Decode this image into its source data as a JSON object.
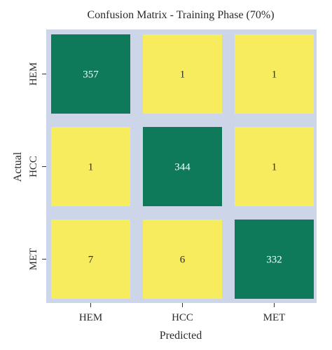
{
  "chart_data": {
    "type": "heatmap",
    "title": "Confusion Matrix - Training Phase (70%)",
    "xlabel": "Predicted",
    "ylabel": "Actual",
    "x_categories": [
      "HEM",
      "HCC",
      "MET"
    ],
    "y_categories": [
      "HEM",
      "HCC",
      "MET"
    ],
    "values": [
      [
        357,
        1,
        1
      ],
      [
        1,
        344,
        1
      ],
      [
        7,
        6,
        332
      ]
    ],
    "grid": false
  },
  "colors": {
    "background_panel": "#cdd5e9",
    "high": "#0e7a5a",
    "low": "#f6ec5e",
    "text_on_high": "#ffffff",
    "text_on_low": "#2a2a2a"
  }
}
